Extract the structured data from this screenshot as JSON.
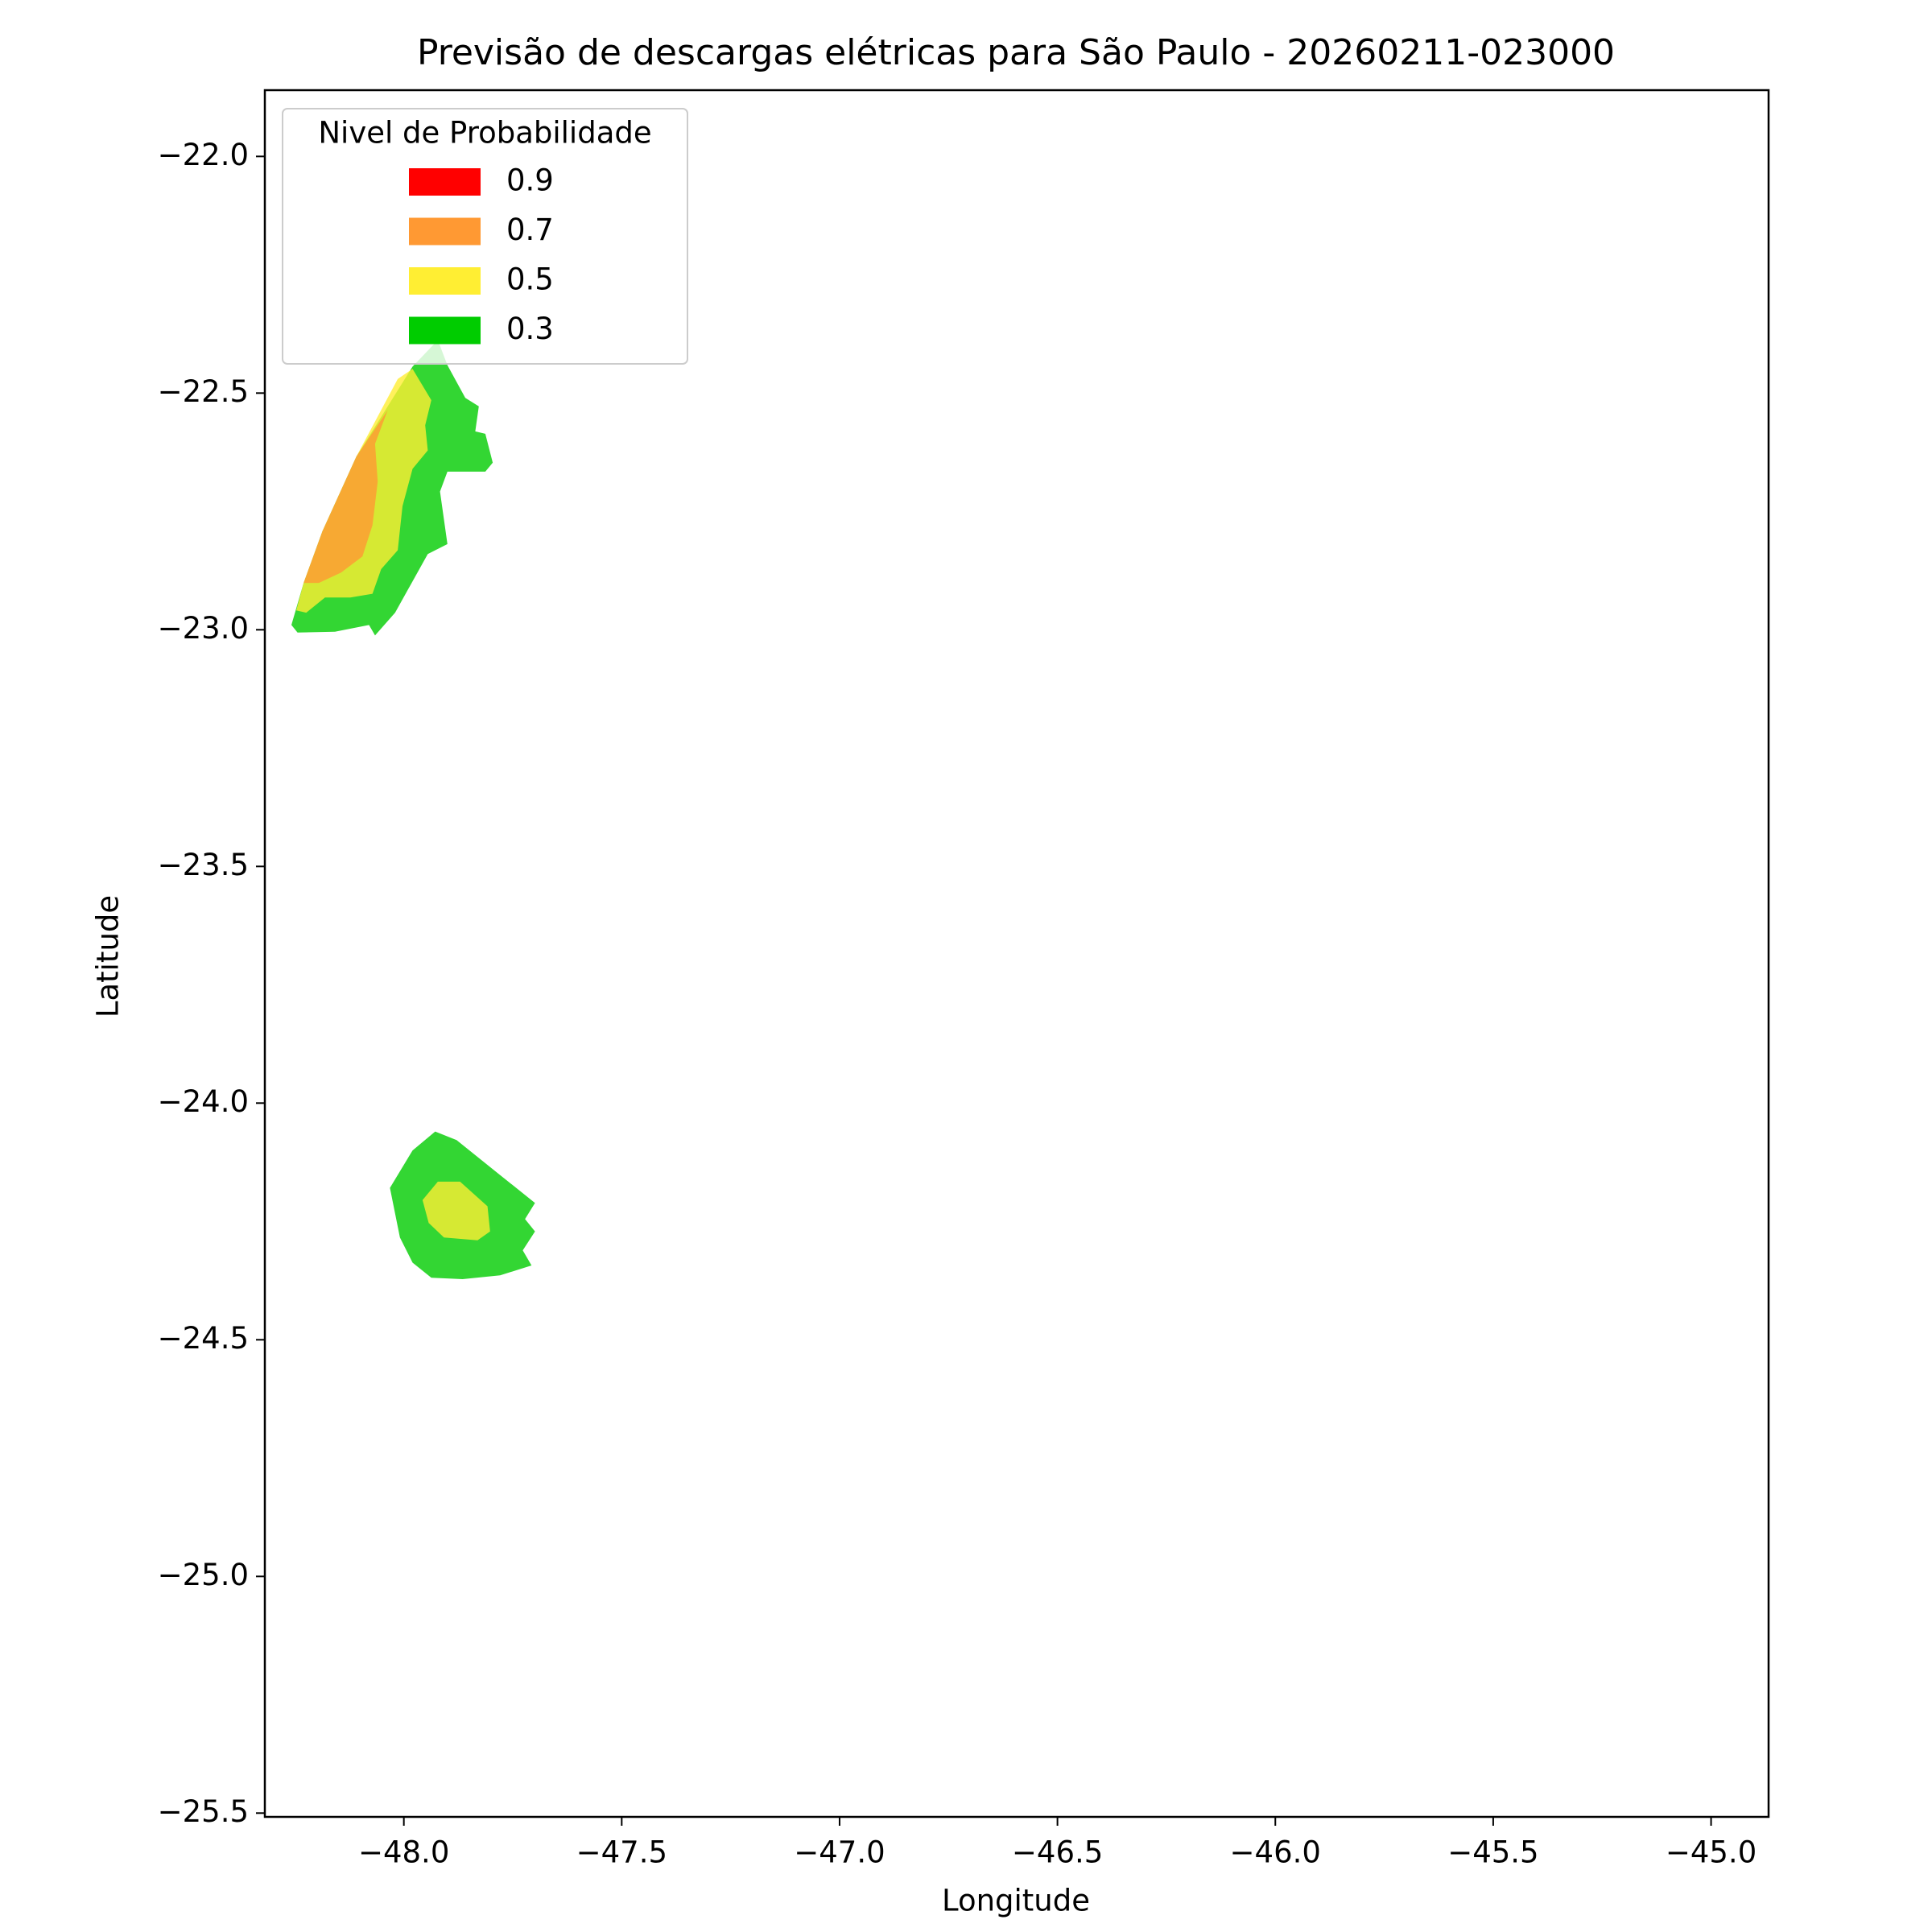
{
  "chart_data": {
    "type": "contour",
    "title": "Previsão de descargas elétricas para São Paulo - 20260211-023000",
    "xlabel": "Longitude",
    "ylabel": "Latitude",
    "legend_title": "Nivel de Probabilidade",
    "legend_loc": "upper left",
    "alpha": 0.8,
    "xlim": [
      -48.319,
      -44.868
    ],
    "ylim": [
      -25.508,
      -21.86
    ],
    "xticks": [
      {
        "value": -48,
        "label": "−48.0"
      },
      {
        "value": -47.5,
        "label": "−47.5"
      },
      {
        "value": -47,
        "label": "−47.0"
      },
      {
        "value": -46.5,
        "label": "−46.5"
      },
      {
        "value": -46,
        "label": "−46.0"
      },
      {
        "value": -45.5,
        "label": "−45.5"
      },
      {
        "value": -45,
        "label": "−45.0"
      }
    ],
    "yticks": [
      {
        "value": -22,
        "label": "−22.0"
      },
      {
        "value": -22.5,
        "label": "−22.5"
      },
      {
        "value": -23,
        "label": "−23.0"
      },
      {
        "value": -23.5,
        "label": "−23.5"
      },
      {
        "value": -24,
        "label": "−24.0"
      },
      {
        "value": -24.5,
        "label": "−24.5"
      },
      {
        "value": -25,
        "label": "−25.0"
      },
      {
        "value": -25.5,
        "label": "−25.5"
      }
    ],
    "series": [
      {
        "name": "0.9",
        "color": "#ff0000",
        "polygons": []
      },
      {
        "name": "0.7",
        "color": "#ff9933",
        "polygons": [
          {
            "lon": [
              -48.23,
              -48.187,
              -48.109,
              -48.037,
              -48.066,
              -48.06,
              -48.072,
              -48.095,
              -48.144,
              -48.195
            ],
            "lat": [
              -22.901,
              -22.792,
              -22.634,
              -22.536,
              -22.607,
              -22.687,
              -22.779,
              -22.845,
              -22.879,
              -22.901
            ]
          }
        ]
      },
      {
        "name": "0.5",
        "color": "#ffee33",
        "polygons": [
          {
            "lon": [
              -48.247,
              -48.23,
              -48.187,
              -48.109,
              -48.014,
              -47.98,
              -47.937,
              -47.951,
              -47.945,
              -47.98,
              -48.003,
              -48.014,
              -48.052,
              -48.072,
              -48.123,
              -48.181,
              -48.224
            ],
            "lat": [
              -22.959,
              -22.901,
              -22.792,
              -22.634,
              -22.47,
              -22.449,
              -22.515,
              -22.568,
              -22.621,
              -22.66,
              -22.739,
              -22.832,
              -22.872,
              -22.924,
              -22.932,
              -22.932,
              -22.964
            ]
          },
          {
            "lon": [
              -47.957,
              -47.922,
              -47.871,
              -47.808,
              -47.802,
              -47.831,
              -47.908,
              -47.943
            ],
            "lat": [
              -24.205,
              -24.166,
              -24.166,
              -24.218,
              -24.271,
              -24.29,
              -24.284,
              -24.253
            ]
          }
        ]
      },
      {
        "name": "0.3",
        "color": "#00cc00",
        "polygons": [
          {
            "lon": [
              -48.258,
              -48.23,
              -48.187,
              -48.109,
              -47.98,
              -47.922,
              -47.9,
              -47.859,
              -47.828,
              -47.836,
              -47.813,
              -47.796,
              -47.813,
              -47.9,
              -47.917,
              -47.9,
              -47.945,
              -48.02,
              -48.066,
              -48.08,
              -48.158,
              -48.244
            ],
            "lat": [
              -22.99,
              -22.901,
              -22.792,
              -22.634,
              -22.444,
              -22.388,
              -22.441,
              -22.51,
              -22.528,
              -22.581,
              -22.586,
              -22.647,
              -22.666,
              -22.666,
              -22.708,
              -22.819,
              -22.84,
              -22.964,
              -23.012,
              -22.99,
              -23.004,
              -23.006
            ]
          },
          {
            "lon": [
              -48.032,
              -47.98,
              -47.928,
              -47.879,
              -47.779,
              -47.699,
              -47.722,
              -47.699,
              -47.727,
              -47.707,
              -47.779,
              -47.865,
              -47.937,
              -47.98,
              -48.009
            ],
            "lat": [
              -24.179,
              -24.1,
              -24.06,
              -24.078,
              -24.152,
              -24.211,
              -24.245,
              -24.271,
              -24.311,
              -24.343,
              -24.364,
              -24.372,
              -24.369,
              -24.337,
              -24.284
            ]
          }
        ]
      }
    ]
  }
}
